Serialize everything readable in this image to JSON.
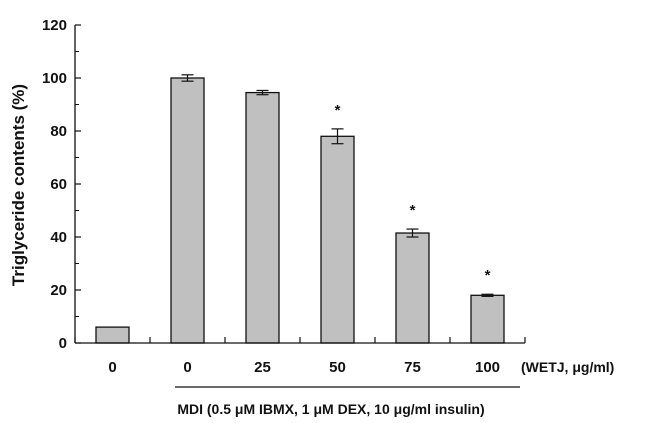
{
  "chart_data": {
    "type": "bar",
    "title": "",
    "ylabel": "Triglyceride contents (%)",
    "xlabel_unit": "(WETJ, μg/ml)",
    "group_label": "MDI (0.5 μM IBMX, 1 μM DEX, 10 μg/ml insulin)",
    "categories": [
      "0",
      "0",
      "25",
      "50",
      "75",
      "100"
    ],
    "values": [
      6,
      100,
      94.5,
      78,
      41.5,
      18
    ],
    "errors": [
      0,
      1.2,
      0.8,
      2.8,
      1.5,
      0.4
    ],
    "significance": [
      "",
      "",
      "",
      "*",
      "*",
      "*"
    ],
    "ylim": [
      0,
      120
    ],
    "yticks": [
      "0",
      "20",
      "40",
      "60",
      "80",
      "100",
      "120"
    ],
    "bar_color": "#c0c0c0",
    "grid": false
  }
}
